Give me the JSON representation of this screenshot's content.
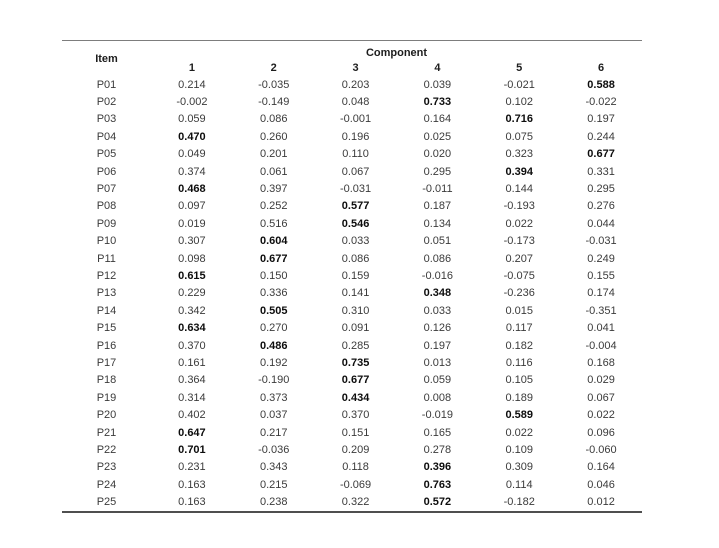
{
  "table": {
    "item_header": "Item",
    "group_header": "Component",
    "columns": [
      "1",
      "2",
      "3",
      "4",
      "5",
      "6"
    ],
    "rows": [
      {
        "item": "P01",
        "values": [
          "0.214",
          "-0.035",
          "0.203",
          "0.039",
          "-0.021",
          "0.588"
        ],
        "bold_index": 5
      },
      {
        "item": "P02",
        "values": [
          "-0.002",
          "-0.149",
          "0.048",
          "0.733",
          "0.102",
          "-0.022"
        ],
        "bold_index": 3
      },
      {
        "item": "P03",
        "values": [
          "0.059",
          "0.086",
          "-0.001",
          "0.164",
          "0.716",
          "0.197"
        ],
        "bold_index": 4
      },
      {
        "item": "P04",
        "values": [
          "0.470",
          "0.260",
          "0.196",
          "0.025",
          "0.075",
          "0.244"
        ],
        "bold_index": 0
      },
      {
        "item": "P05",
        "values": [
          "0.049",
          "0.201",
          "0.110",
          "0.020",
          "0.323",
          "0.677"
        ],
        "bold_index": 5
      },
      {
        "item": "P06",
        "values": [
          "0.374",
          "0.061",
          "0.067",
          "0.295",
          "0.394",
          "0.331"
        ],
        "bold_index": 4
      },
      {
        "item": "P07",
        "values": [
          "0.468",
          "0.397",
          "-0.031",
          "-0.011",
          "0.144",
          "0.295"
        ],
        "bold_index": 0
      },
      {
        "item": "P08",
        "values": [
          "0.097",
          "0.252",
          "0.577",
          "0.187",
          "-0.193",
          "0.276"
        ],
        "bold_index": 2
      },
      {
        "item": "P09",
        "values": [
          "0.019",
          "0.516",
          "0.546",
          "0.134",
          "0.022",
          "0.044"
        ],
        "bold_index": 2
      },
      {
        "item": "P10",
        "values": [
          "0.307",
          "0.604",
          "0.033",
          "0.051",
          "-0.173",
          "-0.031"
        ],
        "bold_index": 1
      },
      {
        "item": "P11",
        "values": [
          "0.098",
          "0.677",
          "0.086",
          "0.086",
          "0.207",
          "0.249"
        ],
        "bold_index": 1
      },
      {
        "item": "P12",
        "values": [
          "0.615",
          "0.150",
          "0.159",
          "-0.016",
          "-0.075",
          "0.155"
        ],
        "bold_index": 0
      },
      {
        "item": "P13",
        "values": [
          "0.229",
          "0.336",
          "0.141",
          "0.348",
          "-0.236",
          "0.174"
        ],
        "bold_index": 3
      },
      {
        "item": "P14",
        "values": [
          "0.342",
          "0.505",
          "0.310",
          "0.033",
          "0.015",
          "-0.351"
        ],
        "bold_index": 1
      },
      {
        "item": "P15",
        "values": [
          "0.634",
          "0.270",
          "0.091",
          "0.126",
          "0.117",
          "0.041"
        ],
        "bold_index": 0
      },
      {
        "item": "P16",
        "values": [
          "0.370",
          "0.486",
          "0.285",
          "0.197",
          "0.182",
          "-0.004"
        ],
        "bold_index": 1
      },
      {
        "item": "P17",
        "values": [
          "0.161",
          "0.192",
          "0.735",
          "0.013",
          "0.116",
          "0.168"
        ],
        "bold_index": 2
      },
      {
        "item": "P18",
        "values": [
          "0.364",
          "-0.190",
          "0.677",
          "0.059",
          "0.105",
          "0.029"
        ],
        "bold_index": 2
      },
      {
        "item": "P19",
        "values": [
          "0.314",
          "0.373",
          "0.434",
          "0.008",
          "0.189",
          "0.067"
        ],
        "bold_index": 2
      },
      {
        "item": "P20",
        "values": [
          "0.402",
          "0.037",
          "0.370",
          "-0.019",
          "0.589",
          "0.022"
        ],
        "bold_index": 4
      },
      {
        "item": "P21",
        "values": [
          "0.647",
          "0.217",
          "0.151",
          "0.165",
          "0.022",
          "0.096"
        ],
        "bold_index": 0
      },
      {
        "item": "P22",
        "values": [
          "0.701",
          "-0.036",
          "0.209",
          "0.278",
          "0.109",
          "-0.060"
        ],
        "bold_index": 0
      },
      {
        "item": "P23",
        "values": [
          "0.231",
          "0.343",
          "0.118",
          "0.396",
          "0.309",
          "0.164"
        ],
        "bold_index": 3
      },
      {
        "item": "P24",
        "values": [
          "0.163",
          "0.215",
          "-0.069",
          "0.763",
          "0.114",
          "0.046"
        ],
        "bold_index": 3
      },
      {
        "item": "P25",
        "values": [
          "0.163",
          "0.238",
          "0.322",
          "0.572",
          "-0.182",
          "0.012"
        ],
        "bold_index": 3
      }
    ]
  }
}
